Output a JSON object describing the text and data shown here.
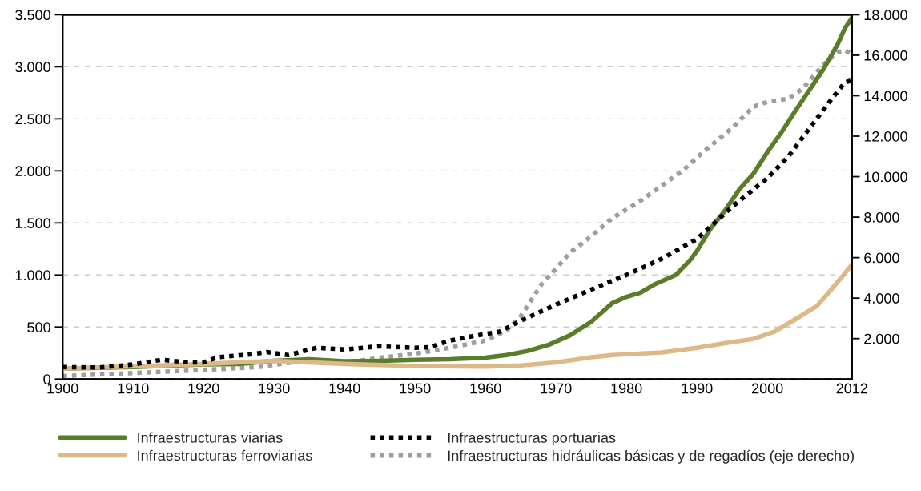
{
  "chart_data": {
    "type": "line",
    "xlim": [
      1900,
      2012
    ],
    "xticks": [
      1900,
      1910,
      1920,
      1930,
      1940,
      1950,
      1960,
      1970,
      1980,
      1990,
      2000,
      2012
    ],
    "ylim": [
      0,
      3500
    ],
    "yticks": [
      0,
      500,
      {
        "value": 1000,
        "label": "1.000"
      },
      {
        "value": 1500,
        "label": "1.500"
      },
      {
        "value": 2000,
        "label": "2.000"
      },
      {
        "value": 2500,
        "label": "2.500"
      },
      {
        "value": 3000,
        "label": "3.000"
      },
      {
        "value": 3500,
        "label": "3.500"
      }
    ],
    "y2lim": [
      0,
      18000
    ],
    "y2ticks": [
      {
        "value": 2000,
        "label": "2.000"
      },
      {
        "value": 4000,
        "label": "4.000"
      },
      {
        "value": 6000,
        "label": "6.000"
      },
      {
        "value": 8000,
        "label": "8.000"
      },
      {
        "value": 10000,
        "label": "10.000"
      },
      {
        "value": 12000,
        "label": "12.000"
      },
      {
        "value": 14000,
        "label": "14.000"
      },
      {
        "value": 16000,
        "label": "16.000"
      },
      {
        "value": 18000,
        "label": "18.000"
      }
    ],
    "grid": "y",
    "legend": "bottom",
    "series": [
      {
        "name": "Infraestructuras viarias",
        "color": "#5a7d2a",
        "line_style": "solid",
        "x": [
          1900,
          1910,
          1920,
          1925,
          1930,
          1935,
          1940,
          1945,
          1950,
          1955,
          1960,
          1963,
          1966,
          1969,
          1972,
          1975,
          1978,
          1980,
          1982,
          1984,
          1987,
          1989,
          1990,
          1992,
          1994,
          1996,
          1998,
          2000,
          2002,
          2004,
          2006,
          2008,
          2010,
          2011,
          2012
        ],
        "values": [
          100,
          115,
          140,
          145,
          175,
          190,
          170,
          175,
          185,
          190,
          205,
          230,
          270,
          330,
          420,
          550,
          730,
          790,
          830,
          910,
          1000,
          1140,
          1230,
          1450,
          1620,
          1820,
          1970,
          2180,
          2370,
          2580,
          2780,
          2980,
          3220,
          3370,
          3470
        ]
      },
      {
        "name": "Infraestructuras ferroviarias",
        "color": "#ddb98a",
        "line_style": "solid",
        "x": [
          1900,
          1920,
          1930,
          1940,
          1950,
          1960,
          1965,
          1970,
          1975,
          1978,
          1985,
          1990,
          1995,
          1998,
          2001,
          2004,
          2007,
          2009,
          2011,
          2012
        ],
        "values": [
          100,
          145,
          175,
          145,
          125,
          120,
          130,
          160,
          210,
          230,
          255,
          300,
          355,
          385,
          455,
          575,
          700,
          855,
          1015,
          1100
        ]
      },
      {
        "name": "Infraestructuras portuarias",
        "color": "#000000",
        "line_style": "dotted",
        "x": [
          1900,
          1905,
          1910,
          1914,
          1918,
          1920,
          1922,
          1927,
          1929,
          1932,
          1936,
          1940,
          1945,
          1950,
          1952,
          1955,
          1958,
          1962,
          1965,
          1970,
          1975,
          1980,
          1985,
          1990,
          1995,
          2000,
          2003,
          2006,
          2009,
          2011,
          2012
        ],
        "values": [
          115,
          110,
          140,
          185,
          160,
          160,
          210,
          240,
          260,
          230,
          300,
          285,
          315,
          300,
          305,
          370,
          410,
          455,
          560,
          715,
          860,
          1000,
          1155,
          1345,
          1655,
          1930,
          2140,
          2410,
          2680,
          2850,
          2870
        ]
      },
      {
        "name": "Infraestructuras hidráulicas básicas y de regadíos (eje derecho)",
        "color": "#9e9e9e",
        "line_style": "dotted",
        "axis": "y2",
        "x": [
          1900,
          1910,
          1920,
          1928,
          1932,
          1935,
          1940,
          1945,
          1950,
          1955,
          1960,
          1963,
          1965,
          1968,
          1970,
          1972,
          1975,
          1978,
          1982,
          1985,
          1988,
          1991,
          1995,
          1998,
          2000,
          2003,
          2005,
          2008,
          2010,
          2011,
          2012
        ],
        "values": [
          150,
          300,
          450,
          600,
          800,
          850,
          800,
          1050,
          1250,
          1550,
          1900,
          2400,
          3100,
          4700,
          5450,
          6250,
          7050,
          7950,
          8800,
          9550,
          10300,
          11250,
          12400,
          13450,
          13700,
          13850,
          14350,
          15550,
          16150,
          16250,
          16050
        ]
      }
    ]
  }
}
